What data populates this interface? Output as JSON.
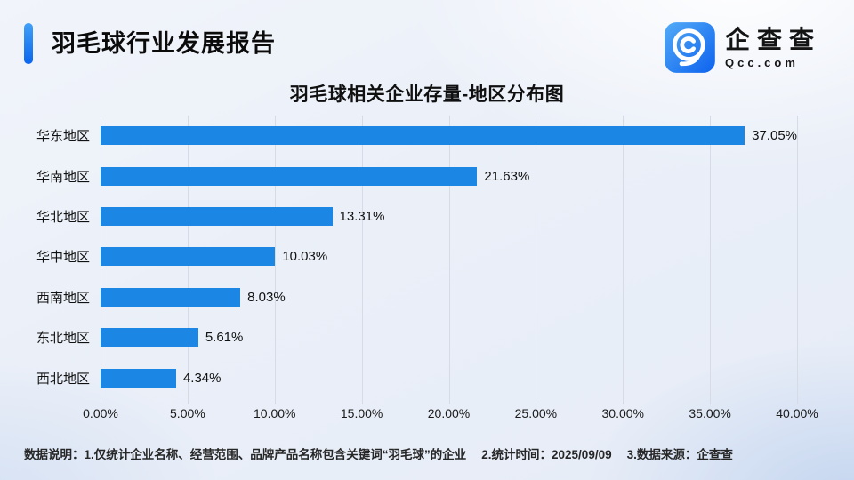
{
  "header": {
    "title": "羽毛球行业发展报告"
  },
  "logo": {
    "name": "企查查",
    "domain": "Qcc.com"
  },
  "chart_data": {
    "type": "bar",
    "orientation": "horizontal",
    "title": "羽毛球相关企业存量-地区分布图",
    "categories": [
      "华东地区",
      "华南地区",
      "华北地区",
      "华中地区",
      "西南地区",
      "东北地区",
      "西北地区"
    ],
    "values": [
      37.05,
      21.63,
      13.31,
      10.03,
      8.03,
      5.61,
      4.34
    ],
    "value_labels": [
      "37.05%",
      "21.63%",
      "13.31%",
      "10.03%",
      "8.03%",
      "5.61%",
      "4.34%"
    ],
    "xlim": [
      0,
      40
    ],
    "x_ticks": [
      "0.00%",
      "5.00%",
      "10.00%",
      "15.00%",
      "20.00%",
      "25.00%",
      "30.00%",
      "35.00%",
      "40.00%"
    ],
    "bar_color": "#1b86e3",
    "grid": true,
    "legend": false
  },
  "footer": {
    "items": [
      "数据说明：1.仅统计企业名称、经营范围、品牌产品名称包含关键词“羽毛球”的企业",
      "2.统计时间：2025/09/09",
      "3.数据来源：企查查"
    ]
  }
}
